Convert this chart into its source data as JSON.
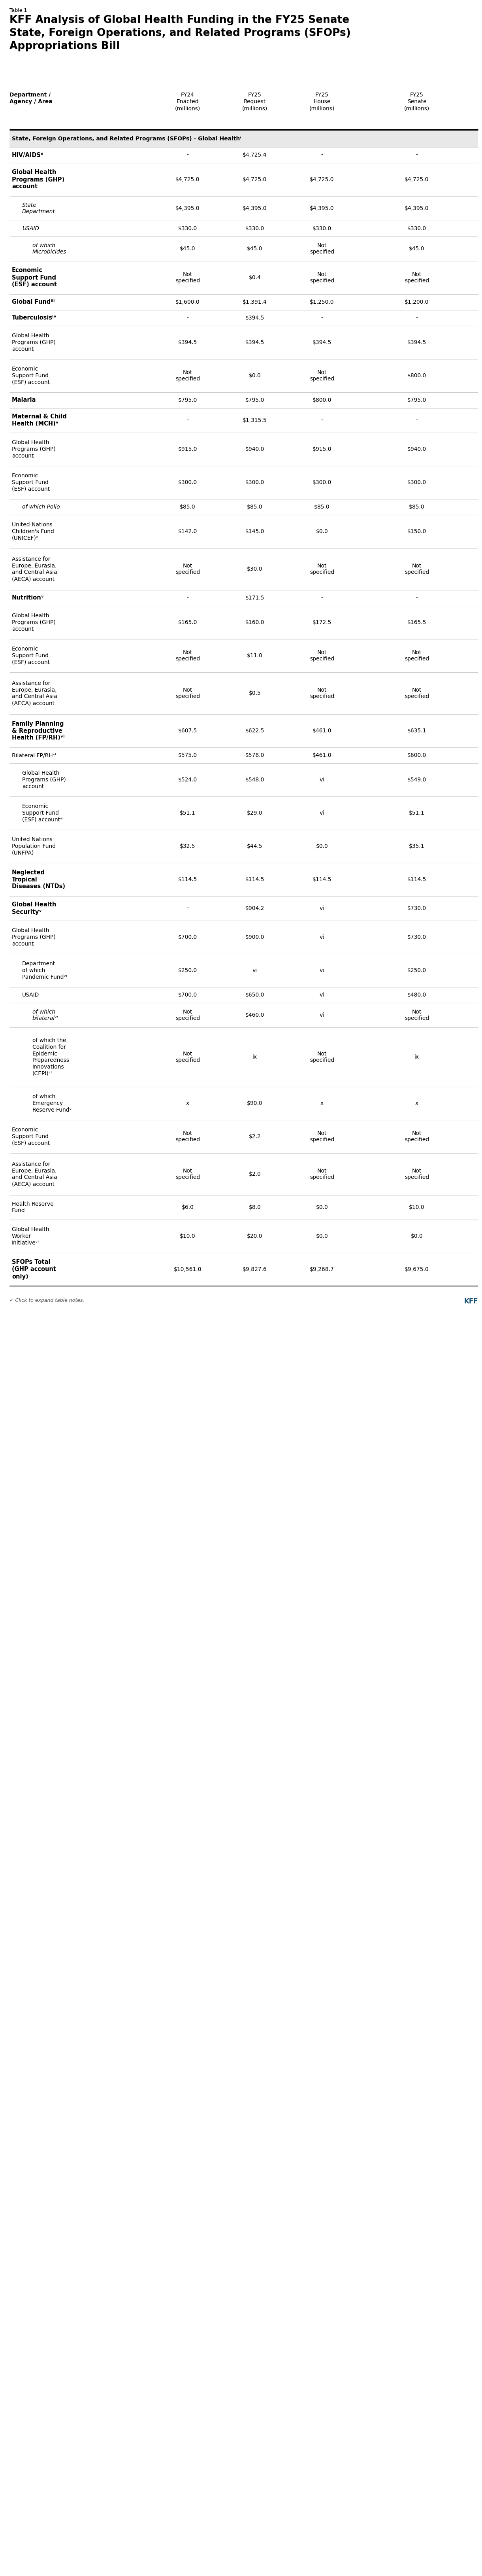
{
  "title_label": "Table 1",
  "title": "KFF Analysis of Global Health Funding in the FY25 Senate\nState, Foreign Operations, and Related Programs (SFOPs)\nAppropriations Bill",
  "section_header": "State, Foreign Operations, and Related Programs (SFOPs) - Global Healthⁱ",
  "rows": [
    {
      "label": "HIV/AIDSᴵᴵ",
      "indent": 0,
      "bold": true,
      "italic": false,
      "fy24": "-",
      "fy25req": "$4,725.4",
      "house": "-",
      "senate": "-"
    },
    {
      "label": "Global Health\nPrograms (GHP)\naccount",
      "indent": 0,
      "bold": true,
      "italic": false,
      "fy24": "$4,725.0",
      "fy25req": "$4,725.0",
      "house": "$4,725.0",
      "senate": "$4,725.0"
    },
    {
      "label": "State\nDepartment",
      "indent": 1,
      "bold": false,
      "italic": true,
      "fy24": "$4,395.0",
      "fy25req": "$4,395.0",
      "house": "$4,395.0",
      "senate": "$4,395.0"
    },
    {
      "label": "USAID",
      "indent": 1,
      "bold": false,
      "italic": true,
      "fy24": "$330.0",
      "fy25req": "$330.0",
      "house": "$330.0",
      "senate": "$330.0"
    },
    {
      "label": "of which\nMicrobicides",
      "indent": 2,
      "bold": false,
      "italic": true,
      "fy24": "$45.0",
      "fy25req": "$45.0",
      "house": "Not\nspecified",
      "senate": "$45.0"
    },
    {
      "label": "Economic\nSupport Fund\n(ESF) account",
      "indent": 0,
      "bold": true,
      "italic": false,
      "fy24": "Not\nspecified",
      "fy25req": "$0.4",
      "house": "Not\nspecified",
      "senate": "Not\nspecified"
    },
    {
      "label": "Global Fundᴵᴵᴵ",
      "indent": 0,
      "bold": true,
      "italic": false,
      "fy24": "$1,600.0",
      "fy25req": "$1,391.4",
      "house": "$1,250.0",
      "senate": "$1,200.0"
    },
    {
      "label": "Tuberculosisᴵᵛ",
      "indent": 0,
      "bold": true,
      "italic": false,
      "fy24": "-",
      "fy25req": "$394.5",
      "house": "-",
      "senate": "-"
    },
    {
      "label": "Global Health\nPrograms (GHP)\naccount",
      "indent": 0,
      "bold": false,
      "italic": false,
      "fy24": "$394.5",
      "fy25req": "$394.5",
      "house": "$394.5",
      "senate": "$394.5"
    },
    {
      "label": "Economic\nSupport Fund\n(ESF) account",
      "indent": 0,
      "bold": false,
      "italic": false,
      "fy24": "Not\nspecified",
      "fy25req": "$0.0",
      "house": "Not\nspecified",
      "senate": "$800.0"
    },
    {
      "label": "Malaria",
      "indent": 0,
      "bold": true,
      "italic": false,
      "fy24": "$795.0",
      "fy25req": "$795.0",
      "house": "$800.0",
      "senate": "$795.0"
    },
    {
      "label": "Maternal & Child\nHealth (MCH)ᵛ",
      "indent": 0,
      "bold": true,
      "italic": false,
      "fy24": "-",
      "fy25req": "$1,315.5",
      "house": "-",
      "senate": "-"
    },
    {
      "label": "Global Health\nPrograms (GHP)\naccount",
      "indent": 0,
      "bold": false,
      "italic": false,
      "fy24": "$915.0",
      "fy25req": "$940.0",
      "house": "$915.0",
      "senate": "$940.0"
    },
    {
      "label": "Economic\nSupport Fund\n(ESF) account",
      "indent": 0,
      "bold": false,
      "italic": false,
      "fy24": "$300.0",
      "fy25req": "$300.0",
      "house": "$300.0",
      "senate": "$300.0"
    },
    {
      "label": "of which Polio",
      "indent": 1,
      "bold": false,
      "italic": true,
      "fy24": "$85.0",
      "fy25req": "$85.0",
      "house": "$85.0",
      "senate": "$85.0"
    },
    {
      "label": "United Nations\nChildren's Fund\n(UNICEF)ᵛ",
      "indent": 0,
      "bold": false,
      "italic": false,
      "fy24": "$142.0",
      "fy25req": "$145.0",
      "house": "$0.0",
      "senate": "$150.0"
    },
    {
      "label": "Assistance for\nEurope, Eurasia,\nand Central Asia\n(AECA) account",
      "indent": 0,
      "bold": false,
      "italic": false,
      "fy24": "Not\nspecified",
      "fy25req": "$30.0",
      "house": "Not\nspecified",
      "senate": "Not\nspecified"
    },
    {
      "label": "Nutritionᵛ",
      "indent": 0,
      "bold": true,
      "italic": false,
      "fy24": "-",
      "fy25req": "$171.5",
      "house": "-",
      "senate": "-"
    },
    {
      "label": "Global Health\nPrograms (GHP)\naccount",
      "indent": 0,
      "bold": false,
      "italic": false,
      "fy24": "$165.0",
      "fy25req": "$160.0",
      "house": "$172.5",
      "senate": "$165.5"
    },
    {
      "label": "Economic\nSupport Fund\n(ESF) account",
      "indent": 0,
      "bold": false,
      "italic": false,
      "fy24": "Not\nspecified",
      "fy25req": "$11.0",
      "house": "Not\nspecified",
      "senate": "Not\nspecified"
    },
    {
      "label": "Assistance for\nEurope, Eurasia,\nand Central Asia\n(AECA) account",
      "indent": 0,
      "bold": false,
      "italic": false,
      "fy24": "Not\nspecified",
      "fy25req": "$0.5",
      "house": "Not\nspecified",
      "senate": "Not\nspecified"
    },
    {
      "label": "Family Planning\n& Reproductive\nHealth (FP/RH)ᵛᴵ",
      "indent": 0,
      "bold": true,
      "italic": false,
      "fy24": "$607.5",
      "fy25req": "$622.5",
      "house": "$461.0",
      "senate": "$635.1"
    },
    {
      "label": "Bilateral FP/RHᵛᴵ",
      "indent": 0,
      "bold": false,
      "italic": false,
      "fy24": "$575.0",
      "fy25req": "$578.0",
      "house": "$461.0",
      "senate": "$600.0"
    },
    {
      "label": "Global Health\nPrograms (GHP)\naccount",
      "indent": 1,
      "bold": false,
      "italic": false,
      "fy24": "$524.0",
      "fy25req": "$548.0",
      "house": "vi",
      "senate": "$549.0"
    },
    {
      "label": "Economic\nSupport Fund\n(ESF) accountᵛᴵ",
      "indent": 1,
      "bold": false,
      "italic": false,
      "fy24": "$51.1",
      "fy25req": "$29.0",
      "house": "vi",
      "senate": "$51.1"
    },
    {
      "label": "United Nations\nPopulation Fund\n(UNFPA)",
      "indent": 0,
      "bold": false,
      "italic": false,
      "fy24": "$32.5",
      "fy25req": "$44.5",
      "house": "$0.0",
      "senate": "$35.1"
    },
    {
      "label": "Neglected\nTropical\nDiseases (NTDs)",
      "indent": 0,
      "bold": true,
      "italic": false,
      "fy24": "$114.5",
      "fy25req": "$114.5",
      "house": "$114.5",
      "senate": "$114.5"
    },
    {
      "label": "Global Health\nSecurityᵛ",
      "indent": 0,
      "bold": true,
      "italic": false,
      "fy24": "-",
      "fy25req": "$904.2",
      "house": "vi",
      "senate": "$730.0"
    },
    {
      "label": "Global Health\nPrograms (GHP)\naccount",
      "indent": 0,
      "bold": false,
      "italic": false,
      "fy24": "$700.0",
      "fy25req": "$900.0",
      "house": "vi",
      "senate": "$730.0"
    },
    {
      "label": "Department\nof which\nPandemic Fundᵛᴵ",
      "indent": 1,
      "bold": false,
      "italic": false,
      "fy24": "$250.0",
      "fy25req": "vi",
      "house": "vi",
      "senate": "$250.0"
    },
    {
      "label": "USAID",
      "indent": 1,
      "bold": false,
      "italic": false,
      "fy24": "$700.0",
      "fy25req": "$650.0",
      "house": "vi",
      "senate": "$480.0"
    },
    {
      "label": "of which\nbilateralᵛᴵ",
      "indent": 2,
      "bold": false,
      "italic": true,
      "fy24": "Not\nspecified",
      "fy25req": "$460.0",
      "house": "vi",
      "senate": "Not\nspecified"
    },
    {
      "label": "of which the\nCoalition for\nEpidemic\nPreparedness\nInnovations\n(CEPI)ᵛᴵ",
      "indent": 2,
      "bold": false,
      "italic": false,
      "fy24": "Not\nspecified",
      "fy25req": "ix",
      "house": "Not\nspecified",
      "senate": "ix"
    },
    {
      "label": "of which\nEmergency\nReserve Fundᵛ",
      "indent": 2,
      "bold": false,
      "italic": false,
      "fy24": "x",
      "fy25req": "$90.0",
      "house": "x",
      "senate": "x"
    },
    {
      "label": "Economic\nSupport Fund\n(ESF) account",
      "indent": 0,
      "bold": false,
      "italic": false,
      "fy24": "Not\nspecified",
      "fy25req": "$2.2",
      "house": "Not\nspecified",
      "senate": "Not\nspecified"
    },
    {
      "label": "Assistance for\nEurope, Eurasia,\nand Central Asia\n(AECA) account",
      "indent": 0,
      "bold": false,
      "italic": false,
      "fy24": "Not\nspecified",
      "fy25req": "$2.0",
      "house": "Not\nspecified",
      "senate": "Not\nspecified"
    },
    {
      "label": "Health Reserve\nFund",
      "indent": 0,
      "bold": false,
      "italic": false,
      "fy24": "$6.0",
      "fy25req": "$8.0",
      "house": "$0.0",
      "senate": "$10.0"
    },
    {
      "label": "Global Health\nWorker\nInitiativeᵛᴵ",
      "indent": 0,
      "bold": false,
      "italic": false,
      "fy24": "$10.0",
      "fy25req": "$20.0",
      "house": "$0.0",
      "senate": "$0.0"
    },
    {
      "label": "SFOPs Total\n(GHP account\nonly)",
      "indent": 0,
      "bold": true,
      "italic": false,
      "fy24": "$10,561.0",
      "fy25req": "$9,827.6",
      "house": "$9,268.7",
      "senate": "$9,675.0",
      "last_row": true
    }
  ],
  "footnote_text": "✓ Click to expand table notes.",
  "kff_label": "KFF",
  "bg_section_header": "#e8e8e8",
  "thick_line_color": "#000000",
  "thin_line_color": "#cccccc",
  "header_bold_col0": true
}
